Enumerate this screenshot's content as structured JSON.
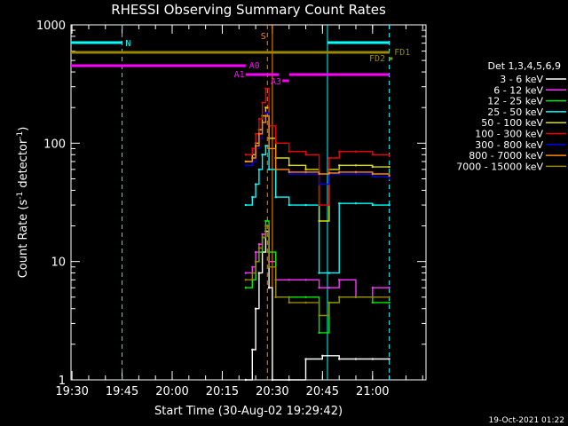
{
  "chart_data": {
    "type": "line",
    "title": "RHESSI Observing Summary Count Rates",
    "xlabel": "Start Time (30-Aug-02 19:29:42)",
    "ylabel_main": "Count Rate (s",
    "ylabel_sup": "-1",
    "ylabel_mid": " detector",
    "ylabel_end": ")",
    "timestamp": "19-Oct-2021 01:22",
    "y_scale": "log",
    "ylim": [
      1,
      1000
    ],
    "xlim": [
      "19:29:42",
      "21:16:00"
    ],
    "x_ticks": [
      "19:30",
      "19:45",
      "20:00",
      "20:15",
      "20:30",
      "20:45",
      "21:00"
    ],
    "y_ticks": [
      "1",
      "10",
      "100",
      "1000"
    ],
    "legend_title": "Det 1,3,4,5,6,9",
    "legend_position": "right",
    "series": [
      {
        "name": "3 - 6 keV",
        "color": "#ffffff",
        "points": [
          [
            "20:22",
            1
          ],
          [
            "20:24",
            1.8
          ],
          [
            "20:25",
            4
          ],
          [
            "20:26",
            8
          ],
          [
            "20:27",
            12
          ],
          [
            "20:28",
            18
          ],
          [
            "20:29",
            6
          ],
          [
            "20:30",
            1
          ],
          [
            "20:35",
            1
          ],
          [
            "20:40",
            1.5
          ],
          [
            "20:45",
            1.6
          ],
          [
            "20:50",
            1.5
          ],
          [
            "20:55",
            1.5
          ],
          [
            "21:00",
            1.5
          ],
          [
            "21:05",
            1.5
          ]
        ]
      },
      {
        "name": "6 - 12 keV",
        "color": "#ff33ff",
        "points": [
          [
            "20:22",
            8
          ],
          [
            "20:24",
            9
          ],
          [
            "20:25",
            12
          ],
          [
            "20:26",
            14
          ],
          [
            "20:27",
            17
          ],
          [
            "20:28",
            20
          ],
          [
            "20:29",
            10
          ],
          [
            "20:31",
            7
          ],
          [
            "20:35",
            7
          ],
          [
            "20:40",
            7
          ],
          [
            "20:44",
            6
          ],
          [
            "20:47",
            6
          ],
          [
            "20:50",
            7
          ],
          [
            "20:55",
            5
          ],
          [
            "21:00",
            6
          ],
          [
            "21:05",
            6
          ]
        ]
      },
      {
        "name": "12 - 25 keV",
        "color": "#00ee00",
        "points": [
          [
            "20:22",
            6
          ],
          [
            "20:24",
            7
          ],
          [
            "20:25",
            10
          ],
          [
            "20:26",
            12
          ],
          [
            "20:27",
            16
          ],
          [
            "20:28",
            22
          ],
          [
            "20:29",
            12
          ],
          [
            "20:31",
            5
          ],
          [
            "20:35",
            5
          ],
          [
            "20:40",
            5
          ],
          [
            "20:44",
            2.5
          ],
          [
            "20:47",
            4.5
          ],
          [
            "20:50",
            5
          ],
          [
            "20:55",
            5
          ],
          [
            "21:00",
            4.5
          ],
          [
            "21:05",
            4.5
          ]
        ]
      },
      {
        "name": "25 - 50 keV",
        "color": "#00ffff",
        "points": [
          [
            "20:22",
            30
          ],
          [
            "20:24",
            35
          ],
          [
            "20:25",
            45
          ],
          [
            "20:26",
            60
          ],
          [
            "20:27",
            80
          ],
          [
            "20:28",
            95
          ],
          [
            "20:29",
            60
          ],
          [
            "20:31",
            35
          ],
          [
            "20:35",
            30
          ],
          [
            "20:40",
            30
          ],
          [
            "20:44",
            8
          ],
          [
            "20:47",
            8
          ],
          [
            "20:50",
            31
          ],
          [
            "20:55",
            31
          ],
          [
            "21:00",
            30
          ],
          [
            "21:05",
            30
          ]
        ]
      },
      {
        "name": "50 - 100 keV",
        "color": "#dddd00",
        "points": [
          [
            "20:22",
            70
          ],
          [
            "20:24",
            80
          ],
          [
            "20:25",
            100
          ],
          [
            "20:26",
            130
          ],
          [
            "20:27",
            170
          ],
          [
            "20:28",
            200
          ],
          [
            "20:29",
            110
          ],
          [
            "20:31",
            75
          ],
          [
            "20:35",
            65
          ],
          [
            "20:40",
            60
          ],
          [
            "20:44",
            22
          ],
          [
            "20:47",
            60
          ],
          [
            "20:50",
            65
          ],
          [
            "20:55",
            65
          ],
          [
            "21:00",
            63
          ],
          [
            "21:05",
            63
          ]
        ]
      },
      {
        "name": "100 - 300 keV",
        "color": "#ee0000",
        "points": [
          [
            "20:22",
            80
          ],
          [
            "20:24",
            90
          ],
          [
            "20:25",
            120
          ],
          [
            "20:26",
            160
          ],
          [
            "20:27",
            220
          ],
          [
            "20:28",
            290
          ],
          [
            "20:29",
            140
          ],
          [
            "20:31",
            100
          ],
          [
            "20:35",
            85
          ],
          [
            "20:40",
            80
          ],
          [
            "20:44",
            30
          ],
          [
            "20:47",
            75
          ],
          [
            "20:50",
            85
          ],
          [
            "20:55",
            85
          ],
          [
            "21:00",
            80
          ],
          [
            "21:05",
            78
          ]
        ]
      },
      {
        "name": "300 - 800 keV",
        "color": "#0000ee",
        "points": [
          [
            "20:22",
            65
          ],
          [
            "20:24",
            70
          ],
          [
            "20:25",
            90
          ],
          [
            "20:26",
            110
          ],
          [
            "20:27",
            150
          ],
          [
            "20:28",
            180
          ],
          [
            "20:29",
            90
          ],
          [
            "20:31",
            60
          ],
          [
            "20:35",
            55
          ],
          [
            "20:40",
            55
          ],
          [
            "20:44",
            45
          ],
          [
            "20:47",
            55
          ],
          [
            "20:50",
            55
          ],
          [
            "20:55",
            55
          ],
          [
            "21:00",
            52
          ],
          [
            "21:05",
            50
          ]
        ]
      },
      {
        "name": "800 - 7000 keV",
        "color": "#ff8800",
        "points": [
          [
            "20:22",
            70
          ],
          [
            "20:24",
            75
          ],
          [
            "20:25",
            95
          ],
          [
            "20:26",
            120
          ],
          [
            "20:27",
            150
          ],
          [
            "20:28",
            170
          ],
          [
            "20:29",
            90
          ],
          [
            "20:31",
            60
          ],
          [
            "20:35",
            57
          ],
          [
            "20:40",
            57
          ],
          [
            "20:44",
            55
          ],
          [
            "20:47",
            56
          ],
          [
            "20:50",
            57
          ],
          [
            "20:55",
            57
          ],
          [
            "21:00",
            55
          ],
          [
            "21:05",
            53
          ]
        ]
      },
      {
        "name": "7000 - 15000 keV",
        "color": "#998800",
        "points": [
          [
            "20:22",
            7
          ],
          [
            "20:24",
            8
          ],
          [
            "20:25",
            10
          ],
          [
            "20:26",
            13
          ],
          [
            "20:27",
            16
          ],
          [
            "20:28",
            20
          ],
          [
            "20:29",
            9
          ],
          [
            "20:31",
            5
          ],
          [
            "20:35",
            4.5
          ],
          [
            "20:40",
            4.5
          ],
          [
            "20:44",
            3.5
          ],
          [
            "20:47",
            4.5
          ],
          [
            "20:50",
            5
          ],
          [
            "20:55",
            5
          ],
          [
            "21:00",
            5
          ],
          [
            "21:05",
            5
          ]
        ]
      }
    ],
    "flags": [
      {
        "label": "N",
        "color": "#00ffff",
        "segments": [
          [
            "19:29:42",
            "19:45"
          ],
          [
            "20:46:30",
            "21:05"
          ]
        ]
      },
      {
        "label": "S",
        "color": "#ff8800",
        "segments": []
      },
      {
        "label": "A0",
        "color": "#ff00ff",
        "segments": [
          [
            "19:29:42",
            "20:22"
          ]
        ]
      },
      {
        "label": "A1",
        "color": "#ff00ff",
        "segments": [
          [
            "20:22",
            "20:32"
          ],
          [
            "20:35",
            "21:05"
          ]
        ]
      },
      {
        "label": "A3",
        "color": "#ff00ff",
        "segments": [
          [
            "20:33",
            "20:35"
          ]
        ]
      },
      {
        "label": "FD2",
        "color": "#998800",
        "segments": [
          [
            "21:05",
            "21:06"
          ]
        ]
      },
      {
        "label": "FD1",
        "color": "#998800",
        "segments": [
          [
            "19:29:42",
            "21:05"
          ]
        ]
      }
    ],
    "vlines": [
      {
        "time": "19:45",
        "color": "#00ffff",
        "style": "dashed"
      },
      {
        "time": "20:46:30",
        "color": "#00ffff",
        "style": "solid"
      },
      {
        "time": "21:05",
        "color": "#00ffff",
        "style": "dashed"
      },
      {
        "time": "20:28:30",
        "color": "#ff8800",
        "style": "dashed"
      },
      {
        "time": "20:30",
        "color": "#ff8800",
        "style": "solid"
      }
    ]
  }
}
